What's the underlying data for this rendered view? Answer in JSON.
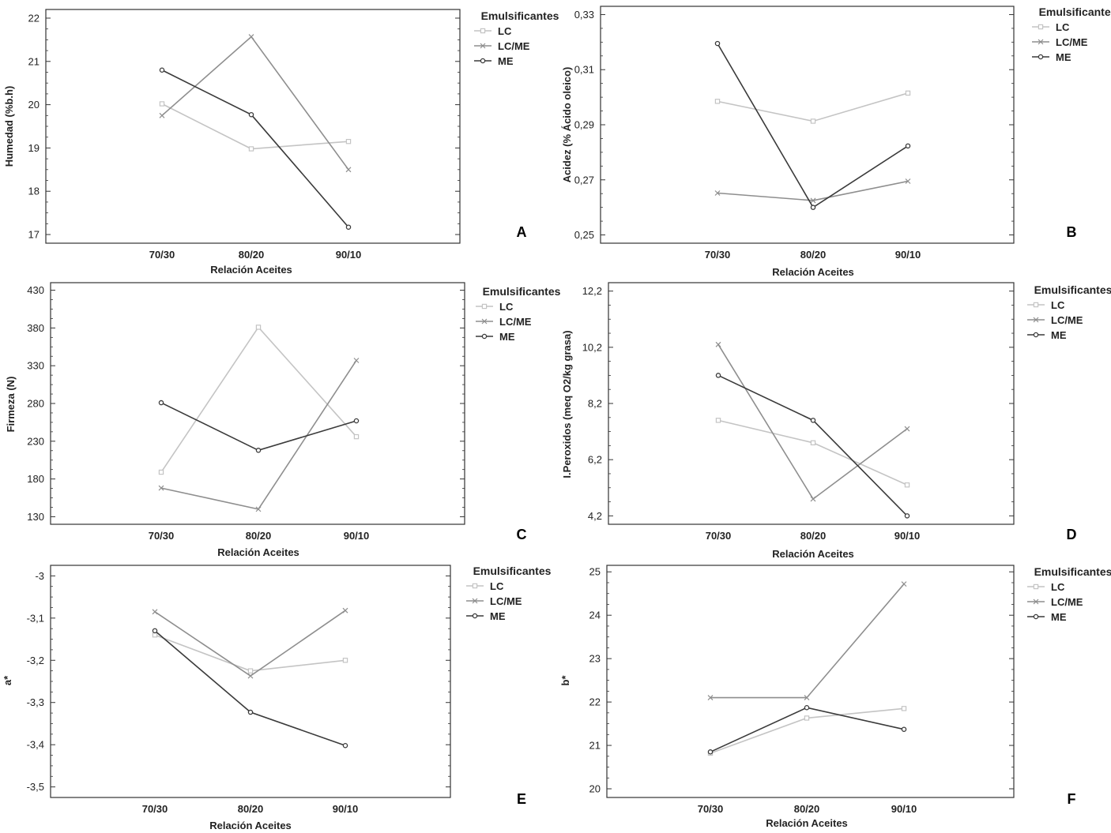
{
  "chart_data": [
    {
      "panel": "A",
      "type": "line",
      "categories": [
        "70/30",
        "80/20",
        "90/10"
      ],
      "xlabel": "Relación Aceites",
      "ylabel": "Humedad (%b.h)",
      "ylim": [
        16.8,
        22.2
      ],
      "yticks": [
        "17",
        "18",
        "19",
        "20",
        "21",
        "22"
      ],
      "yticks_values": [
        17,
        18,
        19,
        20,
        21,
        22
      ],
      "legend_title": "Emulsificantes",
      "legend_position": "right",
      "series": [
        {
          "name": "LC",
          "values": [
            20.02,
            18.98,
            19.15
          ]
        },
        {
          "name": "LC/ME",
          "values": [
            19.75,
            21.57,
            18.5
          ]
        },
        {
          "name": "ME",
          "values": [
            20.8,
            19.77,
            17.17
          ]
        }
      ]
    },
    {
      "panel": "B",
      "type": "line",
      "categories": [
        "70/30",
        "80/20",
        "90/10"
      ],
      "xlabel": "Relación Aceites",
      "ylabel": "Acidez (% Ácido oleico)",
      "ylim": [
        0.247,
        0.333
      ],
      "yticks": [
        "0,25",
        "0,27",
        "0,29",
        "0,31",
        "0,33"
      ],
      "yticks_values": [
        0.25,
        0.27,
        0.29,
        0.31,
        0.33
      ],
      "legend_title": "Emulsificantes",
      "legend_position": "right",
      "series": [
        {
          "name": "LC",
          "values": [
            0.2985,
            0.2913,
            0.3015
          ]
        },
        {
          "name": "LC/ME",
          "values": [
            0.2652,
            0.2625,
            0.2695
          ]
        },
        {
          "name": "ME",
          "values": [
            0.3195,
            0.26,
            0.2823
          ]
        }
      ]
    },
    {
      "panel": "C",
      "type": "line",
      "categories": [
        "70/30",
        "80/20",
        "90/10"
      ],
      "xlabel": "Relación Aceites",
      "ylabel": "Firmeza (N)",
      "ylim": [
        120,
        440
      ],
      "yticks": [
        "130",
        "180",
        "230",
        "280",
        "330",
        "380",
        "430"
      ],
      "yticks_values": [
        130,
        180,
        230,
        280,
        330,
        380,
        430
      ],
      "legend_title": "Emulsificantes",
      "legend_position": "right",
      "series": [
        {
          "name": "LC",
          "values": [
            189,
            381,
            236
          ]
        },
        {
          "name": "LC/ME",
          "values": [
            168,
            140,
            337
          ]
        },
        {
          "name": "ME",
          "values": [
            281,
            218,
            257
          ]
        }
      ]
    },
    {
      "panel": "D",
      "type": "line",
      "categories": [
        "70/30",
        "80/20",
        "90/10"
      ],
      "xlabel": "Relación Aceites",
      "ylabel": "I.Peroxidos (meq O2/kg grasa)",
      "ylim": [
        3.9,
        12.5
      ],
      "yticks": [
        "4,2",
        "6,2",
        "8,2",
        "10,2",
        "12,2"
      ],
      "yticks_values": [
        4.2,
        6.2,
        8.2,
        10.2,
        12.2
      ],
      "legend_title": "Emulsificantes",
      "legend_position": "right",
      "series": [
        {
          "name": "LC",
          "values": [
            7.6,
            6.8,
            5.3
          ]
        },
        {
          "name": "LC/ME",
          "values": [
            10.3,
            4.8,
            7.3
          ]
        },
        {
          "name": "ME",
          "values": [
            9.2,
            7.6,
            4.2
          ]
        }
      ]
    },
    {
      "panel": "E",
      "type": "line",
      "categories": [
        "70/30",
        "80/20",
        "90/10"
      ],
      "xlabel": "Relación Aceites",
      "ylabel": "a*",
      "ylim": [
        -3.525,
        -2.975
      ],
      "yticks": [
        "-3",
        "-3,1",
        "-3,2",
        "-3,3",
        "-3,4",
        "-3,5"
      ],
      "yticks_values": [
        -3.0,
        -3.1,
        -3.2,
        -3.3,
        -3.4,
        -3.5
      ],
      "legend_title": "Emulsificantes",
      "legend_position": "right",
      "series": [
        {
          "name": "LC",
          "values": [
            -3.14,
            -3.225,
            -3.2
          ]
        },
        {
          "name": "LC/ME",
          "values": [
            -3.085,
            -3.237,
            -3.082
          ]
        },
        {
          "name": "ME",
          "values": [
            -3.13,
            -3.323,
            -3.402
          ]
        }
      ]
    },
    {
      "panel": "F",
      "type": "line",
      "categories": [
        "70/30",
        "80/20",
        "90/10"
      ],
      "xlabel": "Relación Aceites",
      "ylabel": "b*",
      "ylim": [
        19.8,
        25.15
      ],
      "yticks": [
        "20",
        "21",
        "22",
        "23",
        "24",
        "25"
      ],
      "yticks_values": [
        20,
        21,
        22,
        23,
        24,
        25
      ],
      "legend_title": "Emulsificantes",
      "legend_position": "right",
      "series": [
        {
          "name": "LC",
          "values": [
            20.82,
            21.63,
            21.85
          ]
        },
        {
          "name": "LC/ME",
          "values": [
            22.1,
            22.1,
            24.72
          ]
        },
        {
          "name": "ME",
          "values": [
            20.85,
            21.87,
            21.37
          ]
        }
      ]
    }
  ],
  "style": {
    "series_colors": {
      "LC": "#c4c4c4",
      "LC/ME": "#8e8e8e",
      "ME": "#3a3a3a"
    },
    "series_markers": {
      "LC": "square",
      "LC/ME": "cross",
      "ME": "circle"
    },
    "frame_color": "#333333",
    "grid": false
  }
}
